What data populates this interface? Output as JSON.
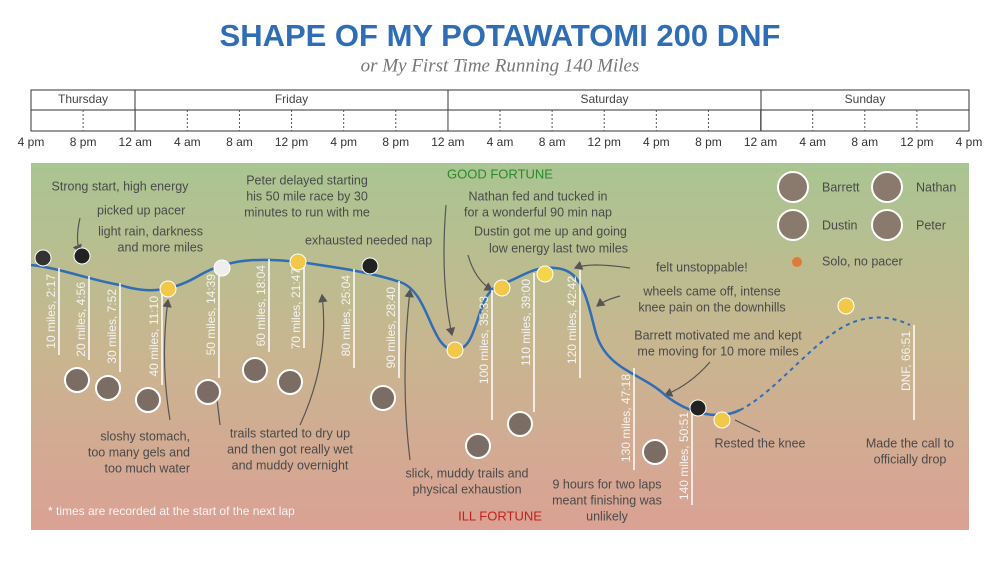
{
  "title": "SHAPE OF MY POTAWATOMI 200 DNF",
  "subtitle": "or My First Time Running 140 Miles",
  "days": [
    "Thursday",
    "Friday",
    "Saturday",
    "Sunday"
  ],
  "times": [
    "4 pm",
    "8 pm",
    "12 am",
    "4 am",
    "8 am",
    "12 pm",
    "4 pm",
    "8 pm",
    "12 am",
    "4 am",
    "8 am",
    "12 pm",
    "4 pm",
    "8 pm",
    "12 am",
    "4 am",
    "8 am",
    "12 pm",
    "4 pm"
  ],
  "fortune": {
    "good": "GOOD FORTUNE",
    "ill": "ILL FORTUNE"
  },
  "laps": [
    "10 miles, 2:17",
    "20 miles, 4:56",
    "30 miles, 7:52",
    "40 miles, 11:10",
    "50 miles, 14:39",
    "60 miles, 18:04",
    "70 miles, 21:47",
    "80 miles, 25:04",
    "90 miles, 28:40",
    "100 miles, 35:33",
    "110 miles, 39:00",
    "120 miles, 42:42",
    "130 miles, 47:18",
    "140 miles, 50:51",
    "DNF, 66:51"
  ],
  "annotations": [
    [
      "Strong start, high energy"
    ],
    [
      "picked up pacer"
    ],
    [
      "light rain, darkness",
      "and more miles"
    ],
    [
      "Peter delayed starting",
      "his 50 mile race by 30",
      "minutes to run with me"
    ],
    [
      "exhausted needed nap"
    ],
    [
      "Nathan fed and tucked in",
      "for a wonderful 90 min nap"
    ],
    [
      "Dustin got me up and going"
    ],
    [
      "low energy last two miles"
    ],
    [
      "felt unstoppable!"
    ],
    [
      "wheels came off, intense",
      "knee pain on the downhills"
    ],
    [
      "Barrett motivated me and kept",
      "me moving for 10 more miles"
    ],
    [
      "Rested the knee"
    ],
    [
      "Made the call to",
      "officially drop"
    ],
    [
      "sloshy stomach,",
      "too many gels and",
      "too much water"
    ],
    [
      "trails started to dry up",
      "and then got really wet",
      "and muddy overnight"
    ],
    [
      "slick, muddy trails and",
      "physical exhaustion"
    ],
    [
      "9 hours for two laps",
      "meant finishing was",
      "unlikely"
    ]
  ],
  "legend": [
    "Barrett",
    "Nathan",
    "Dustin",
    "Peter"
  ],
  "solo": "Solo, no pacer",
  "footnote": "* times are recorded at the start of the next lap"
}
